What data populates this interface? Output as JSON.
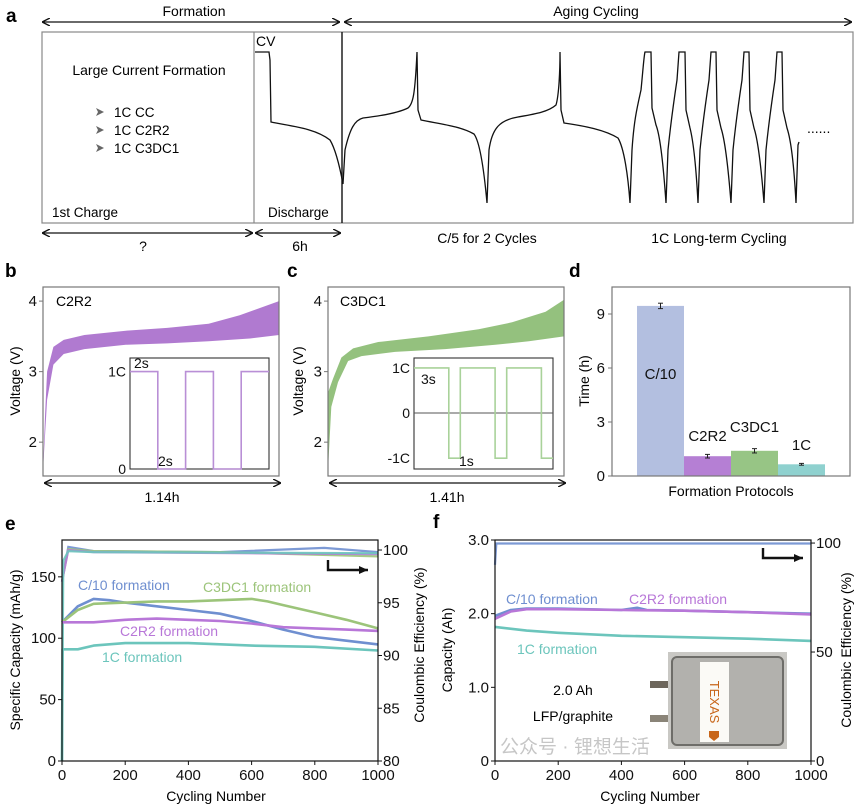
{
  "panel_labels": {
    "a": "a",
    "b": "b",
    "c": "c",
    "d": "d",
    "e": "e",
    "f": "f"
  },
  "panel_a": {
    "phase_formation": "Formation",
    "phase_aging": "Aging Cycling",
    "cv": "CV",
    "title": "Large Current Formation",
    "protocols": [
      "1C CC",
      "1C C2R2",
      "1C C3DC1"
    ],
    "first_charge": "1st Charge",
    "discharge": "Discharge",
    "first_charge_duration": "?",
    "discharge_duration": "6h",
    "c5_label": "C/5 for 2 Cycles",
    "long_term_label": "1C Long-term Cycling",
    "ellipsis": "......"
  },
  "chart_data": [
    {
      "panel": "b",
      "type": "area",
      "title": "C2R2",
      "ylabel": "Voltage (V)",
      "ylim": [
        1.52,
        4.2
      ],
      "yticks": [
        2,
        3,
        4
      ],
      "xlim": [
        0,
        1.14
      ],
      "duration_label": "1.14h",
      "color": "#b07ad0",
      "upper": [
        [
          0,
          1.6
        ],
        [
          0.01,
          2.4
        ],
        [
          0.02,
          3.0
        ],
        [
          0.05,
          3.35
        ],
        [
          0.1,
          3.45
        ],
        [
          0.2,
          3.52
        ],
        [
          0.4,
          3.58
        ],
        [
          0.6,
          3.62
        ],
        [
          0.8,
          3.68
        ],
        [
          0.95,
          3.8
        ],
        [
          1.14,
          4.0
        ]
      ],
      "lower": [
        [
          0,
          1.6
        ],
        [
          0.02,
          2.6
        ],
        [
          0.05,
          3.1
        ],
        [
          0.1,
          3.25
        ],
        [
          0.2,
          3.32
        ],
        [
          0.4,
          3.38
        ],
        [
          0.6,
          3.4
        ],
        [
          0.8,
          3.43
        ],
        [
          1.0,
          3.47
        ],
        [
          1.14,
          3.52
        ]
      ],
      "inset": {
        "type": "line",
        "xlim": [
          0,
          10
        ],
        "ylim": [
          0,
          1.14
        ],
        "color": "#b98fd6",
        "ytick_labels": [
          {
            "value": 1,
            "label": "1C"
          },
          {
            "value": 0,
            "label": "0"
          }
        ],
        "points": [
          [
            0,
            1
          ],
          [
            2,
            1
          ],
          [
            2,
            0
          ],
          [
            4,
            0
          ],
          [
            4,
            1
          ],
          [
            6,
            1
          ],
          [
            6,
            0
          ],
          [
            8,
            0
          ],
          [
            8,
            1
          ],
          [
            10,
            1
          ]
        ],
        "annotations": [
          "2s",
          "2s"
        ]
      }
    },
    {
      "panel": "c",
      "type": "area",
      "title": "C3DC1",
      "ylabel": "Voltage (V)",
      "ylim": [
        1.52,
        4.2
      ],
      "yticks": [
        2,
        3,
        4
      ],
      "xlim": [
        0,
        1.41
      ],
      "duration_label": "1.41h",
      "color": "#94c17e",
      "upper": [
        [
          0,
          2.7
        ],
        [
          0.03,
          2.9
        ],
        [
          0.08,
          3.2
        ],
        [
          0.15,
          3.33
        ],
        [
          0.3,
          3.42
        ],
        [
          0.6,
          3.5
        ],
        [
          0.9,
          3.6
        ],
        [
          1.1,
          3.7
        ],
        [
          1.3,
          3.85
        ],
        [
          1.41,
          4.02
        ]
      ],
      "lower": [
        [
          0,
          1.6
        ],
        [
          0.02,
          2.5
        ],
        [
          0.06,
          2.85
        ],
        [
          0.12,
          3.15
        ],
        [
          0.2,
          3.22
        ],
        [
          0.4,
          3.28
        ],
        [
          0.7,
          3.32
        ],
        [
          1.0,
          3.38
        ],
        [
          1.2,
          3.43
        ],
        [
          1.41,
          3.5
        ]
      ],
      "inset": {
        "type": "line",
        "xlim": [
          0,
          12
        ],
        "ylim": [
          -1.24,
          1.22
        ],
        "color": "#a9d29a",
        "ytick_labels": [
          {
            "value": 1,
            "label": "1C"
          },
          {
            "value": 0,
            "label": "0"
          },
          {
            "value": -1,
            "label": "-1C"
          }
        ],
        "points": [
          [
            0,
            1
          ],
          [
            3,
            1
          ],
          [
            3,
            -1
          ],
          [
            4,
            -1
          ],
          [
            4,
            1
          ],
          [
            7,
            1
          ],
          [
            7,
            -1
          ],
          [
            8,
            -1
          ],
          [
            8,
            1
          ],
          [
            11,
            1
          ],
          [
            11,
            -1
          ],
          [
            12,
            -1
          ]
        ],
        "annotations": [
          "3s",
          "1s"
        ]
      }
    },
    {
      "panel": "d",
      "type": "bar",
      "ylabel": "Time (h)",
      "xlabel": "Formation Protocols",
      "ylim": [
        0,
        10.5
      ],
      "yticks": [
        0,
        3,
        6,
        9
      ],
      "categories": [
        "C/10",
        "C2R2",
        "C3DC1",
        "1C"
      ],
      "values": [
        9.45,
        1.1,
        1.4,
        0.65
      ],
      "errors": [
        0.15,
        0.1,
        0.12,
        0.05
      ],
      "colors": [
        "#b3bfe0",
        "#b57fd4",
        "#97c585",
        "#8fd1cf"
      ]
    },
    {
      "panel": "e",
      "type": "line",
      "xlabel": "Cycling Number",
      "ylabel": "Specific Capacity (mAh/g)",
      "ylabel_right": "Coulombic Efficiency (%)",
      "xlim": [
        0,
        1000
      ],
      "xticks": [
        0,
        200,
        400,
        600,
        800,
        1000
      ],
      "ylim": [
        0,
        180
      ],
      "yticks": [
        0,
        50,
        100,
        150
      ],
      "ylim_right": [
        80,
        100.95
      ],
      "yticks_right": [
        80,
        85,
        90,
        95,
        100
      ],
      "series": [
        {
          "name": "C/10 formation",
          "color": "#6f8fd0",
          "capacity": [
            [
              0,
              113
            ],
            [
              50,
              126
            ],
            [
              100,
              132
            ],
            [
              150,
              131
            ],
            [
              200,
              129
            ],
            [
              300,
              126
            ],
            [
              400,
              123
            ],
            [
              500,
              120
            ],
            [
              600,
              114
            ],
            [
              700,
              107
            ],
            [
              800,
              101
            ],
            [
              900,
              98
            ],
            [
              1000,
              95
            ]
          ],
          "ce": [
            [
              0,
              97
            ],
            [
              20,
              100.3
            ],
            [
              100,
              99.9
            ],
            [
              500,
              99.8
            ],
            [
              830,
              100.2
            ],
            [
              1000,
              99.8
            ]
          ]
        },
        {
          "name": "C3DC1 formation",
          "color": "#9cc47a",
          "capacity": [
            [
              0,
              113
            ],
            [
              50,
              123
            ],
            [
              100,
              128
            ],
            [
              200,
              129
            ],
            [
              300,
              130
            ],
            [
              400,
              130
            ],
            [
              500,
              131
            ],
            [
              600,
              132
            ],
            [
              650,
              130
            ],
            [
              700,
              127
            ],
            [
              800,
              121
            ],
            [
              900,
              115
            ],
            [
              1000,
              108
            ]
          ],
          "ce": [
            [
              0,
              97
            ],
            [
              20,
              100.1
            ],
            [
              100,
              99.9
            ],
            [
              500,
              99.8
            ],
            [
              1000,
              99.4
            ]
          ]
        },
        {
          "name": "C2R2 formation",
          "color": "#b877d8",
          "capacity": [
            [
              0,
              113
            ],
            [
              100,
              113
            ],
            [
              200,
              115
            ],
            [
              300,
              116
            ],
            [
              400,
              115
            ],
            [
              500,
              114
            ],
            [
              600,
              112
            ],
            [
              700,
              109
            ],
            [
              800,
              108
            ],
            [
              900,
              107
            ],
            [
              1000,
              106
            ]
          ],
          "ce": [
            [
              0,
              97
            ],
            [
              20,
              100
            ],
            [
              100,
              99.8
            ],
            [
              1000,
              99.6
            ]
          ]
        },
        {
          "name": "1C formation",
          "color": "#6cc5bc",
          "capacity": [
            [
              0,
              0
            ],
            [
              2,
              91
            ],
            [
              50,
              91
            ],
            [
              100,
              94
            ],
            [
              200,
              96
            ],
            [
              400,
              96
            ],
            [
              600,
              94
            ],
            [
              800,
              93
            ],
            [
              1000,
              90
            ]
          ],
          "ce": [
            [
              0,
              80
            ],
            [
              4,
              99
            ],
            [
              20,
              99.9
            ],
            [
              100,
              99.8
            ],
            [
              1000,
              99.7
            ]
          ]
        }
      ]
    },
    {
      "panel": "f",
      "type": "line",
      "xlabel": "Cycling Number",
      "ylabel": "Capacity (Ah)",
      "ylabel_right": "Coulombic Efficiency (%)",
      "xlim": [
        0,
        1000
      ],
      "xticks": [
        0,
        200,
        400,
        600,
        800,
        1000
      ],
      "ylim": [
        0,
        3.0
      ],
      "yticks": [
        0,
        1.0,
        2.0,
        3.0
      ],
      "ytick_labels": [
        "0",
        "1.0",
        "2.0",
        "3.0"
      ],
      "ylim_right": [
        0,
        101.4
      ],
      "yticks_right": [
        0,
        50,
        100
      ],
      "series": [
        {
          "name": "C/10 formation",
          "color": "#6f8fd0",
          "capacity": [
            [
              0,
              1.97
            ],
            [
              50,
              2.05
            ],
            [
              100,
              2.07
            ],
            [
              200,
              2.07
            ],
            [
              400,
              2.05
            ],
            [
              450,
              2.08
            ],
            [
              480,
              2.05
            ],
            [
              600,
              2.04
            ],
            [
              800,
              2.02
            ],
            [
              1000,
              2.0
            ]
          ],
          "ce": [
            [
              0,
              90
            ],
            [
              4,
              99.8
            ],
            [
              1000,
              99.8
            ]
          ]
        },
        {
          "name": "C2R2 formation",
          "color": "#b877d8",
          "capacity": [
            [
              0,
              1.93
            ],
            [
              50,
              2.03
            ],
            [
              100,
              2.06
            ],
            [
              200,
              2.06
            ],
            [
              400,
              2.05
            ],
            [
              600,
              2.04
            ],
            [
              800,
              2.02
            ],
            [
              1000,
              1.99
            ]
          ]
        },
        {
          "name": "1C formation",
          "color": "#6cc5bc",
          "capacity": [
            [
              0,
              1.82
            ],
            [
              100,
              1.77
            ],
            [
              200,
              1.74
            ],
            [
              400,
              1.7
            ],
            [
              600,
              1.68
            ],
            [
              800,
              1.66
            ],
            [
              1000,
              1.63
            ]
          ]
        }
      ],
      "annotations": {
        "capacity": "2.0 Ah",
        "chemistry": "LFP/graphite",
        "cell_logo": "TEXAS"
      }
    }
  ],
  "watermark": "公众号 · 锂想生活"
}
